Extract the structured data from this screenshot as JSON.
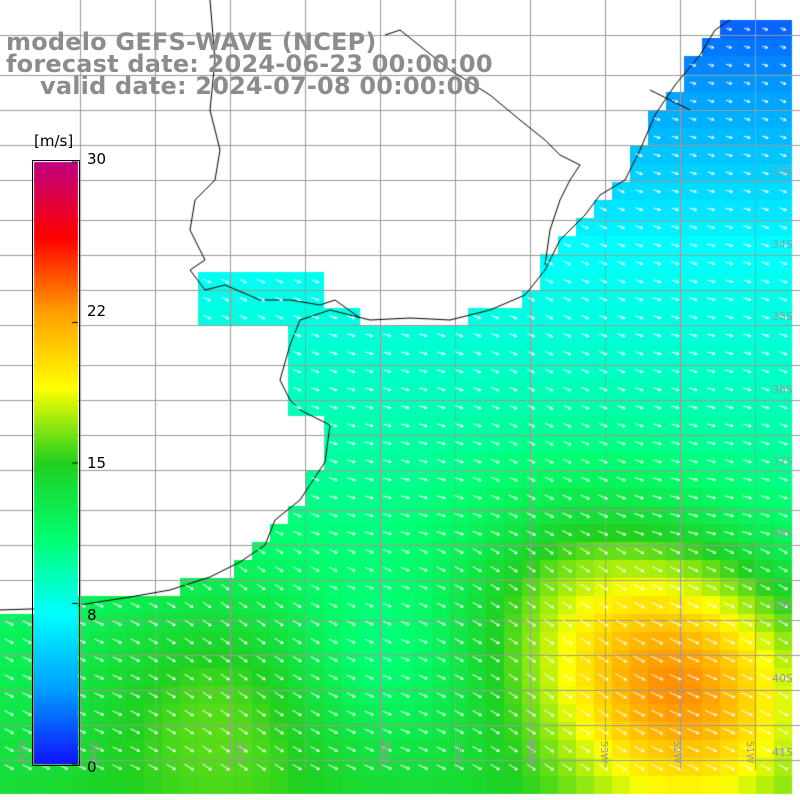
{
  "title": {
    "line1": "modelo GEFS-WAVE (NCEP)",
    "line2": "forecast date: 2024-06-23 00:00:00",
    "line3": "valid date: 2024-07-08 00:00:00"
  },
  "colorbar": {
    "units": "[m/s]",
    "ticks": [
      "30",
      "22",
      "15",
      "8",
      "0"
    ],
    "tick_values": [
      30,
      22,
      15,
      8,
      0
    ],
    "colors": [
      "#1010ff",
      "#00a0ff",
      "#00ffff",
      "#00ff70",
      "#20d020",
      "#ffff00",
      "#ffa000",
      "#ff0000",
      "#c00080"
    ]
  },
  "map": {
    "lat_labels": [
      "33S",
      "34S",
      "35S",
      "36S",
      "37S",
      "38S",
      "39S",
      "40S",
      "41S"
    ],
    "lon_labels": [
      "61W",
      "59W",
      "58W",
      "56W",
      "55W",
      "54W",
      "53W",
      "52W",
      "51W"
    ],
    "field": "wind speed",
    "land_color": "#ffffff",
    "grid_color": "#9a9a9a",
    "arrow_color": "#ffffff"
  }
}
